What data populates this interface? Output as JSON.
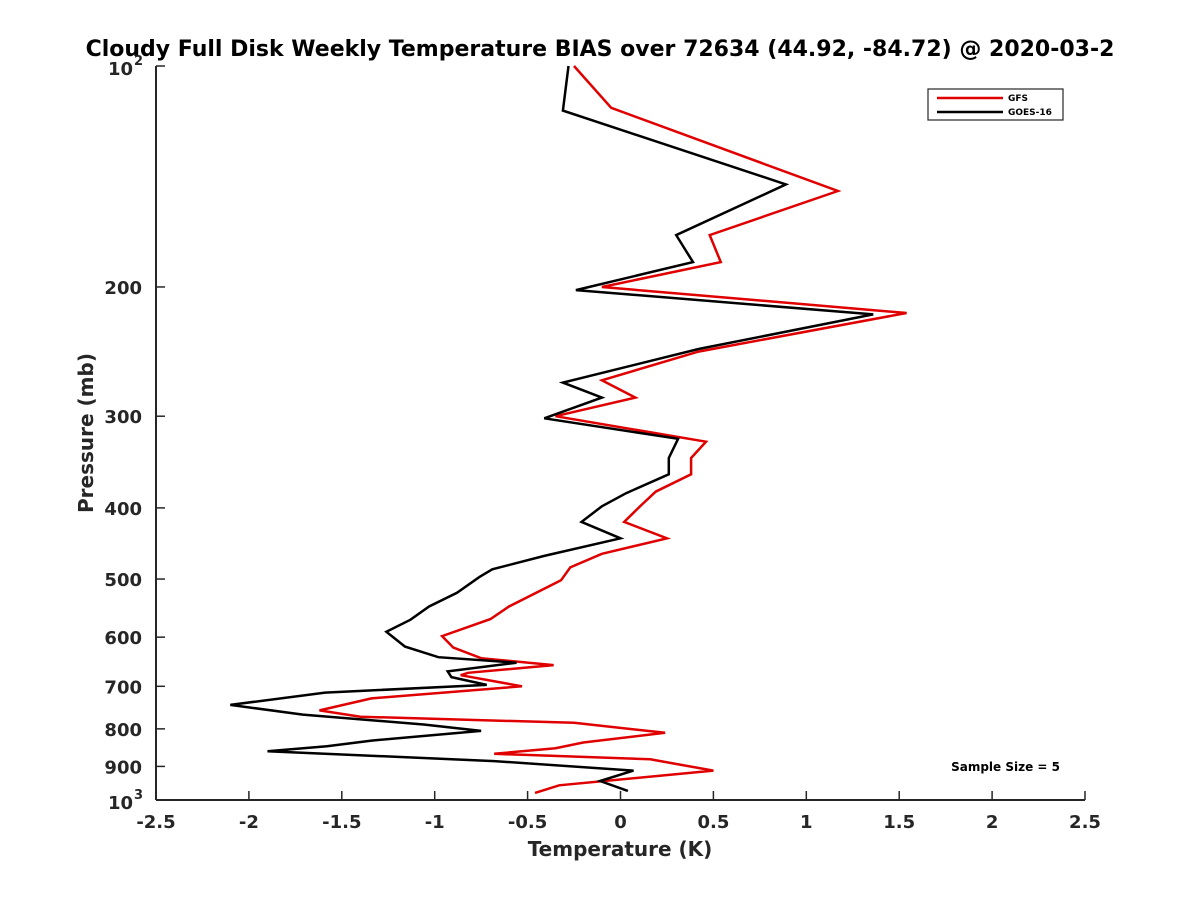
{
  "chart_data": {
    "type": "line",
    "title": "Cloudy Full Disk Weekly Temperature BIAS over 72634 (44.92, -84.72) @ 2020-03-2",
    "xlabel": "Temperature (K)",
    "ylabel": "Pressure (mb)",
    "xlim": [
      -2.5,
      2.5
    ],
    "ylim": [
      100,
      1000
    ],
    "y_scale": "log",
    "y_reversed": true,
    "x_ticks": [
      "-2.5",
      "-2",
      "-1.5",
      "-1",
      "-0.5",
      "0",
      "0.5",
      "1",
      "1.5",
      "2",
      "2.5"
    ],
    "x_tick_values": [
      -2.5,
      -2,
      -1.5,
      -1,
      -0.5,
      0,
      0.5,
      1,
      1.5,
      2,
      2.5
    ],
    "y_ticks": [
      {
        "value": 100,
        "label": "10",
        "sup": "2"
      },
      {
        "value": 200,
        "label": "200",
        "sup": ""
      },
      {
        "value": 300,
        "label": "300",
        "sup": ""
      },
      {
        "value": 400,
        "label": "400",
        "sup": ""
      },
      {
        "value": 500,
        "label": "500",
        "sup": ""
      },
      {
        "value": 600,
        "label": "600",
        "sup": ""
      },
      {
        "value": 700,
        "label": "700",
        "sup": ""
      },
      {
        "value": 800,
        "label": "800",
        "sup": ""
      },
      {
        "value": 900,
        "label": "900",
        "sup": ""
      },
      {
        "value": 1000,
        "label": "10",
        "sup": "3"
      }
    ],
    "grid": false,
    "legend_position": "top-right",
    "annotation": "Sample Size = 5",
    "series": [
      {
        "name": "GFS",
        "color": "#e00000",
        "points": [
          [
            -0.25,
            100
          ],
          [
            -0.05,
            114
          ],
          [
            1.17,
            148
          ],
          [
            0.48,
            170
          ],
          [
            0.54,
            185
          ],
          [
            -0.1,
            200
          ],
          [
            1.54,
            217
          ],
          [
            0.42,
            245
          ],
          [
            -0.1,
            268
          ],
          [
            0.08,
            283
          ],
          [
            -0.35,
            300
          ],
          [
            0.46,
            325
          ],
          [
            0.38,
            342
          ],
          [
            0.38,
            360
          ],
          [
            0.19,
            380
          ],
          [
            0.11,
            397
          ],
          [
            0.02,
            418
          ],
          [
            0.25,
            440
          ],
          [
            -0.1,
            462
          ],
          [
            -0.27,
            482
          ],
          [
            -0.32,
            502
          ],
          [
            -0.6,
            545
          ],
          [
            -0.7,
            567
          ],
          [
            -0.96,
            598
          ],
          [
            -0.9,
            620
          ],
          [
            -0.75,
            641
          ],
          [
            -0.36,
            655
          ],
          [
            -0.82,
            671
          ],
          [
            -0.86,
            676
          ],
          [
            -0.53,
            700
          ],
          [
            -1.34,
            727
          ],
          [
            -1.62,
            755
          ],
          [
            -1.4,
            770
          ],
          [
            -0.25,
            785
          ],
          [
            0.24,
            810
          ],
          [
            -0.2,
            835
          ],
          [
            -0.35,
            850
          ],
          [
            -0.68,
            865
          ],
          [
            0.16,
            880
          ],
          [
            0.5,
            912
          ],
          [
            -0.33,
            955
          ],
          [
            -0.46,
            978
          ]
        ]
      },
      {
        "name": "GOES-16",
        "color": "#000000",
        "points": [
          [
            -0.28,
            100
          ],
          [
            -0.31,
            115
          ],
          [
            0.89,
            145
          ],
          [
            0.3,
            170
          ],
          [
            0.39,
            185
          ],
          [
            -0.24,
            202
          ],
          [
            1.36,
            218
          ],
          [
            0.42,
            243
          ],
          [
            -0.31,
            270
          ],
          [
            -0.1,
            283
          ],
          [
            -0.41,
            302
          ],
          [
            0.31,
            322
          ],
          [
            0.26,
            342
          ],
          [
            0.26,
            360
          ],
          [
            0.03,
            382
          ],
          [
            -0.1,
            398
          ],
          [
            -0.21,
            418
          ],
          [
            0.0,
            440
          ],
          [
            -0.41,
            465
          ],
          [
            -0.69,
            485
          ],
          [
            -0.76,
            497
          ],
          [
            -0.88,
            522
          ],
          [
            -1.03,
            545
          ],
          [
            -1.13,
            568
          ],
          [
            -1.26,
            590
          ],
          [
            -1.16,
            618
          ],
          [
            -0.98,
            639
          ],
          [
            -0.56,
            650
          ],
          [
            -0.93,
            668
          ],
          [
            -0.91,
            680
          ],
          [
            -0.72,
            697
          ],
          [
            -1.59,
            714
          ],
          [
            -2.1,
            742
          ],
          [
            -1.71,
            765
          ],
          [
            -1.06,
            789
          ],
          [
            -0.75,
            805
          ],
          [
            -1.34,
            830
          ],
          [
            -1.58,
            845
          ],
          [
            -1.9,
            858
          ],
          [
            -0.68,
            885
          ],
          [
            0.07,
            912
          ],
          [
            -0.11,
            942
          ],
          [
            0.04,
            972
          ]
        ]
      }
    ]
  }
}
